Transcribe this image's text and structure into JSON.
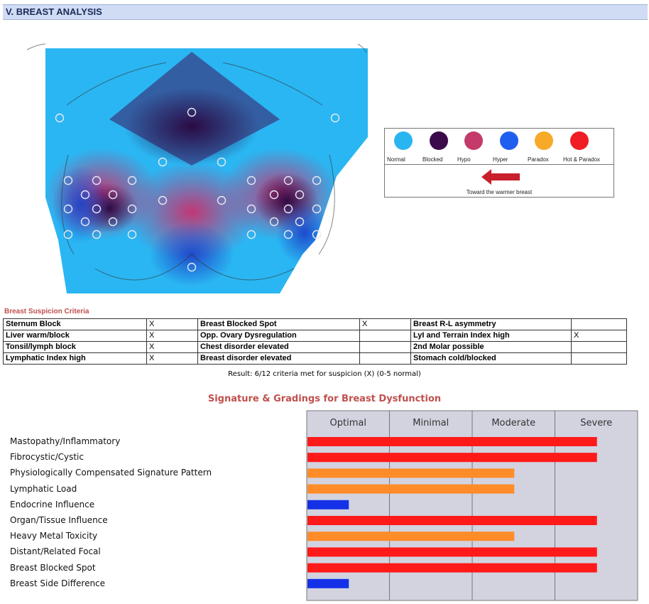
{
  "header": {
    "title": "V. BREAST ANALYSIS"
  },
  "legend": {
    "items": [
      {
        "label": "Normal",
        "color": "#29b5f0"
      },
      {
        "label": "Blocked",
        "color": "#3a0a4a"
      },
      {
        "label": "Hypo",
        "color": "#c43a6a"
      },
      {
        "label": "Hyper",
        "color": "#1f5ff0"
      },
      {
        "label": "Paradox",
        "color": "#f7a928"
      },
      {
        "label": "Hot & Paradox",
        "color": "#f01d24"
      }
    ],
    "arrow_label": "Toward the warmer breast",
    "arrow_direction": "left"
  },
  "criteria": {
    "title": "Breast Suspicion Criteria",
    "rows": [
      [
        {
          "label": "Sternum Block",
          "mark": "X"
        },
        {
          "label": "Breast Blocked Spot",
          "mark": "X"
        },
        {
          "label": "Breast R-L asymmetry",
          "mark": ""
        }
      ],
      [
        {
          "label": "Liver warm/block",
          "mark": "X"
        },
        {
          "label": "Opp. Ovary Dysregulation",
          "mark": ""
        },
        {
          "label": "LyI and Terrain Index high",
          "mark": "X"
        }
      ],
      [
        {
          "label": "Tonsil/lymph block",
          "mark": "X"
        },
        {
          "label": "Chest disorder elevated",
          "mark": ""
        },
        {
          "label": "2nd Molar possible",
          "mark": ""
        }
      ],
      [
        {
          "label": "Lymphatic Index high",
          "mark": "X"
        },
        {
          "label": "Breast disorder elevated",
          "mark": ""
        },
        {
          "label": "Stomach cold/blocked",
          "mark": ""
        }
      ]
    ],
    "result": "Result: 6/12 criteria met for suspicion (X) (0-5 normal)"
  },
  "chart_data": {
    "type": "bar",
    "orientation": "horizontal",
    "title": "Signature & Gradings for Breast Dysfunction",
    "grade_columns": [
      "Optimal",
      "Minimal",
      "Moderate",
      "Severe"
    ],
    "xlim": [
      0,
      4
    ],
    "grid": true,
    "categories": [
      "Mastopathy/Inflammatory",
      "Fibrocystic/Cystic",
      "Physiologically Compensated Signature Pattern",
      "Lymphatic Load",
      "Endocrine Influence",
      "Organ/Tissue Influence",
      "Heavy Metal Toxicity",
      "Distant/Related Focal",
      "Breast Blocked Spot",
      "Breast Side Difference"
    ],
    "values": [
      3.5,
      3.5,
      2.5,
      2.5,
      0.5,
      3.5,
      2.5,
      3.5,
      3.5,
      0.5
    ],
    "bar_colors": [
      "#ff1a1a",
      "#ff1a1a",
      "#ff8c28",
      "#ff8c28",
      "#1431e8",
      "#ff1a1a",
      "#ff8c28",
      "#ff1a1a",
      "#ff1a1a",
      "#1431e8"
    ]
  }
}
